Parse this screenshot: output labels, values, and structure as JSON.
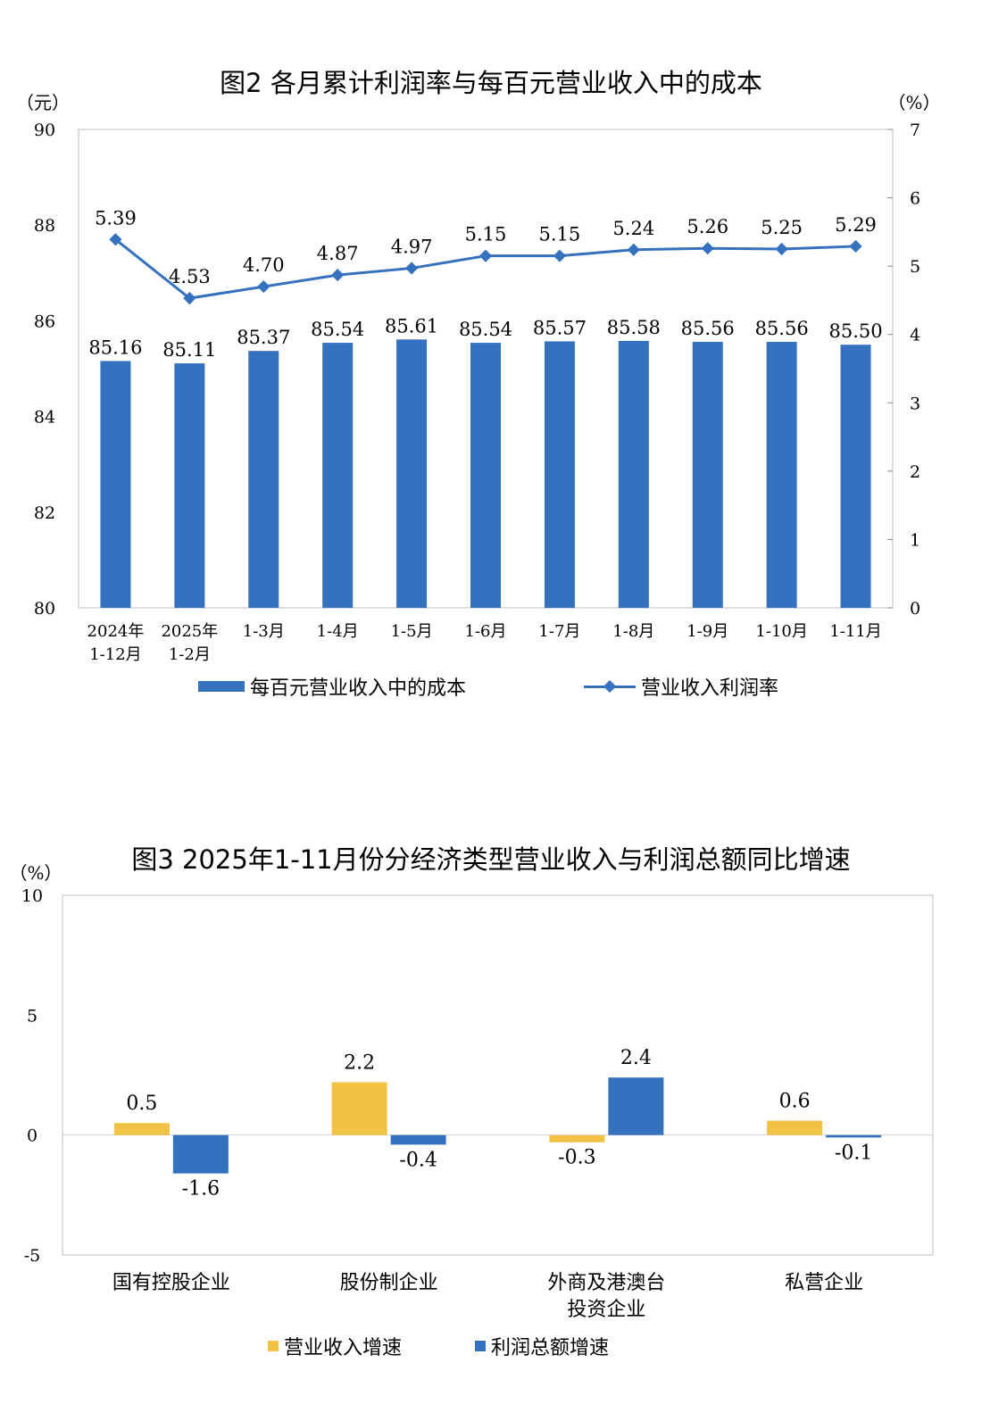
{
  "colors": {
    "blue": "#3471bf",
    "yellow": "#f1c244",
    "axis": "#bfbfbf"
  },
  "chart2": {
    "title": "图2 各月累计利润率与每百元营业收入中的成本",
    "left_unit": "（元）",
    "right_unit": "（%）",
    "chart_data": {
      "type": "bar",
      "categories": [
        "2024年\n1-12月",
        "2025年\n1-2月",
        "1-3月",
        "1-4月",
        "1-5月",
        "1-6月",
        "1-7月",
        "1-8月",
        "1-9月",
        "1-10月",
        "1-11月"
      ],
      "series": [
        {
          "name": "每百元营业收入中的成本",
          "type": "bar",
          "axis": "left",
          "values": [
            85.16,
            85.11,
            85.37,
            85.54,
            85.61,
            85.54,
            85.57,
            85.58,
            85.56,
            85.56,
            85.5
          ],
          "labels": [
            "85.16",
            "85.11",
            "85.37",
            "85.54",
            "85.61",
            "85.54",
            "85.57",
            "85.58",
            "85.56",
            "85.56",
            "85.50"
          ]
        },
        {
          "name": "营业收入利润率",
          "type": "line",
          "axis": "right",
          "values": [
            5.39,
            4.53,
            4.7,
            4.87,
            4.97,
            5.15,
            5.15,
            5.24,
            5.26,
            5.25,
            5.29
          ],
          "labels": [
            "5.39",
            "4.53",
            "4.70",
            "4.87",
            "4.97",
            "5.15",
            "5.15",
            "5.24",
            "5.26",
            "5.25",
            "5.29"
          ]
        }
      ],
      "y_left": {
        "min": 80,
        "max": 90,
        "ticks": [
          "80",
          "82",
          "84",
          "86",
          "88",
          "90"
        ]
      },
      "y_right": {
        "min": 0,
        "max": 7,
        "ticks": [
          "0",
          "1",
          "2",
          "3",
          "4",
          "5",
          "6",
          "7"
        ]
      },
      "legend_position": "bottom"
    }
  },
  "chart3": {
    "title": "图3 2025年1-11月份分经济类型营业收入与利润总额同比增速",
    "unit": "（%）",
    "chart_data": {
      "type": "bar",
      "categories": [
        "国有控股企业",
        "股份制企业",
        "外商及港澳台\n投资企业",
        "私营企业"
      ],
      "series": [
        {
          "name": "营业收入增速",
          "values": [
            0.5,
            2.2,
            -0.3,
            0.6
          ],
          "labels": [
            "0.5",
            "2.2",
            "-0.3",
            "0.6"
          ]
        },
        {
          "name": "利润总额增速",
          "values": [
            -1.6,
            -0.4,
            2.4,
            -0.1
          ],
          "labels": [
            "-1.6",
            "-0.4",
            "2.4",
            "-0.1"
          ]
        }
      ],
      "y": {
        "min": -5,
        "max": 10,
        "ticks": [
          "-5",
          "0",
          "5",
          "10"
        ]
      },
      "legend_position": "bottom"
    }
  }
}
